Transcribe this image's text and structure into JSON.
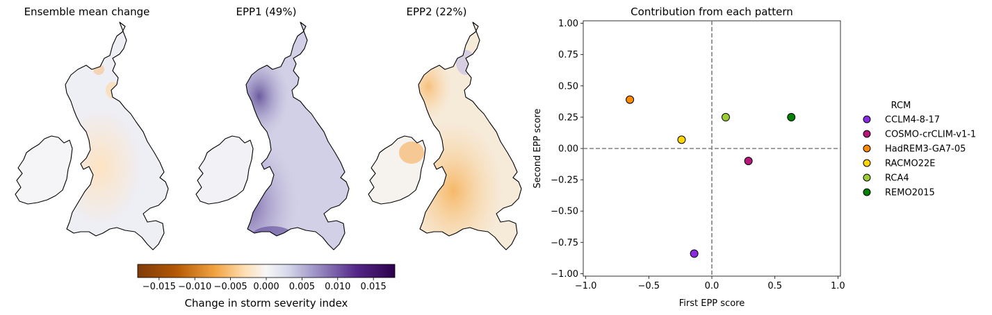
{
  "maps": [
    {
      "title": "Ensemble mean change",
      "pattern": "mean"
    },
    {
      "title": "EPP1 (49%)",
      "pattern": "epp1"
    },
    {
      "title": "EPP2 (22%)",
      "pattern": "epp2"
    }
  ],
  "colorbar": {
    "label": "Change in storm severity index",
    "range": [
      -0.018,
      0.018
    ],
    "ticks": [
      -0.015,
      -0.01,
      -0.005,
      0.0,
      0.005,
      0.01,
      0.015
    ],
    "tick_labels": [
      "−0.015",
      "−0.010",
      "−0.005",
      "0.000",
      "0.005",
      "0.010",
      "0.015"
    ],
    "colormap": "PuOr",
    "colors": {
      "neg_end": "#7f3b08",
      "mid": "#f7f7f7",
      "pos_end": "#2d004b"
    }
  },
  "chart_data": {
    "type": "scatter",
    "title": "Contribution from each pattern",
    "xlabel": "First EPP score",
    "ylabel": "Second EPP score",
    "xlim": [
      -1.02,
      1.02
    ],
    "ylim": [
      -1.02,
      1.02
    ],
    "x_ticks": [
      -1.0,
      -0.5,
      0.0,
      0.5,
      1.0
    ],
    "x_tick_labels": [
      "−1.0",
      "−0.5",
      "0.0",
      "0.5",
      "1.0"
    ],
    "y_ticks": [
      1.0,
      0.75,
      0.5,
      0.25,
      0.0,
      -0.25,
      -0.5,
      -0.75,
      -1.0
    ],
    "y_tick_labels": [
      "1.00",
      "0.75",
      "0.50",
      "0.25",
      "0.00",
      "−0.25",
      "−0.50",
      "−0.75",
      "−1.00"
    ],
    "reference_lines": {
      "x": 0,
      "y": 0,
      "style": "dashed",
      "color": "#808080"
    },
    "grid": false,
    "legend": {
      "title": "RCM",
      "placement": "outside-right"
    },
    "series": [
      {
        "name": "CCLM4-8-17",
        "color": "#8a2be2",
        "x": -0.14,
        "y": -0.84
      },
      {
        "name": "COSMO-crCLIM-v1-1",
        "color": "#b5177b",
        "x": 0.29,
        "y": -0.1
      },
      {
        "name": "HadREM3-GA7-05",
        "color": "#ff8c00",
        "x": -0.65,
        "y": 0.39
      },
      {
        "name": "RACMO22E",
        "color": "#ffd700",
        "x": -0.24,
        "y": 0.07
      },
      {
        "name": "RCA4",
        "color": "#9acd32",
        "x": 0.11,
        "y": 0.25
      },
      {
        "name": "REMO2015",
        "color": "#008000",
        "x": 0.63,
        "y": 0.25
      }
    ]
  }
}
